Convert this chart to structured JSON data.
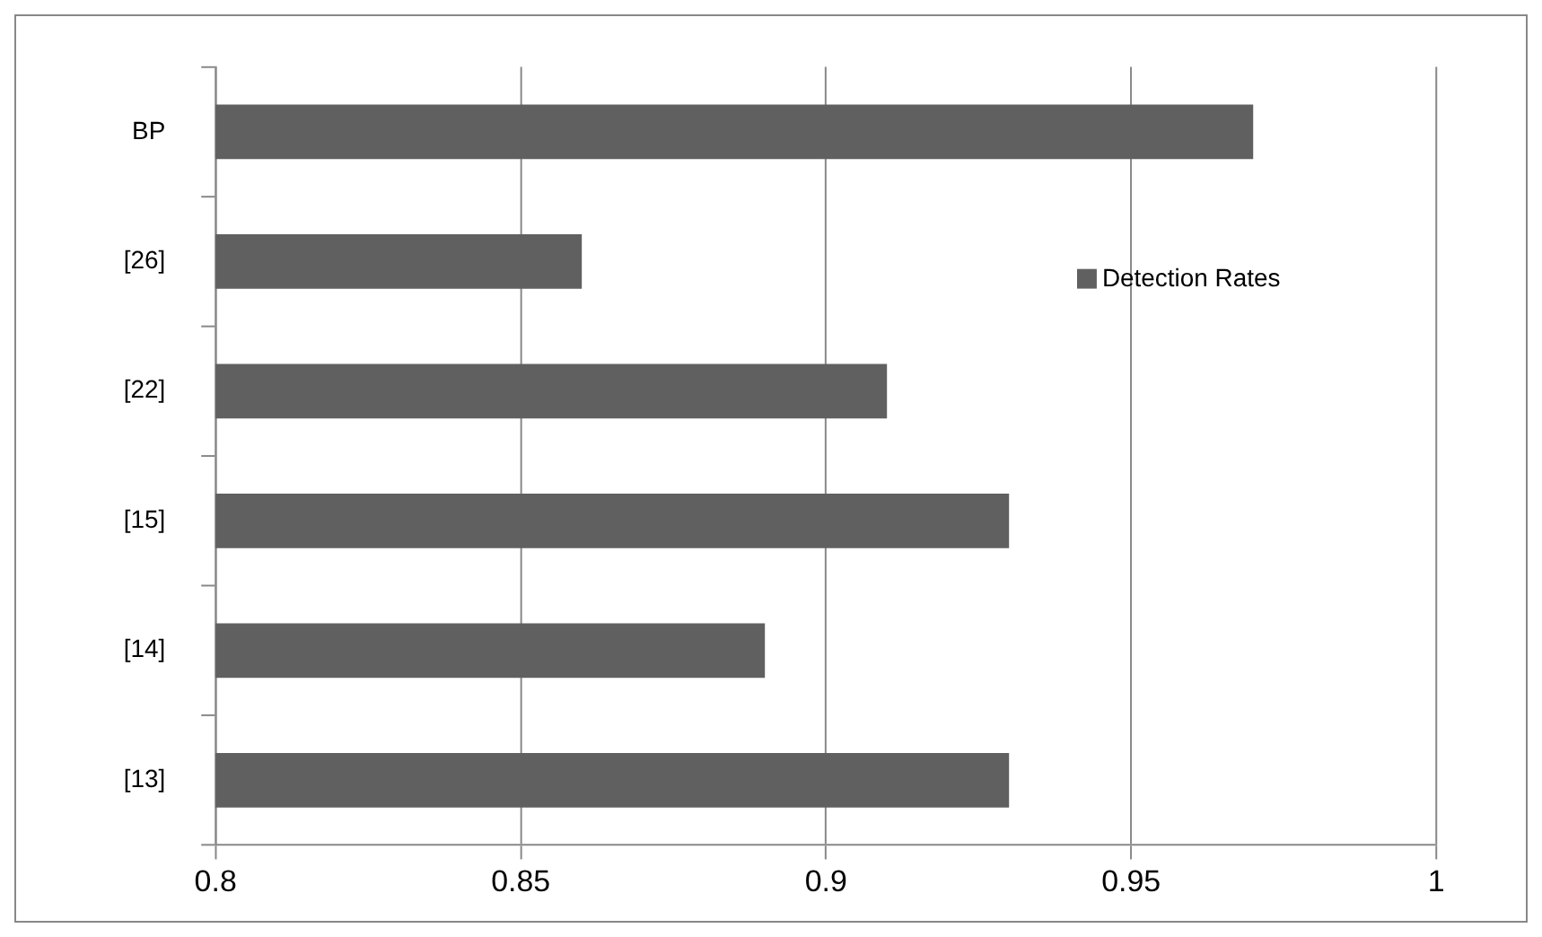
{
  "chart_data": {
    "type": "bar",
    "orientation": "horizontal",
    "categories": [
      "BP",
      "[26]",
      "[22]",
      "[15]",
      "[14]",
      "[13]"
    ],
    "series": [
      {
        "name": "Detection Rates",
        "color": "#606060",
        "values": [
          0.97,
          0.86,
          0.91,
          0.93,
          0.89,
          0.93
        ]
      }
    ],
    "xlim": [
      0.8,
      1
    ],
    "xticks": [
      0.8,
      0.85,
      0.9,
      0.95,
      1
    ],
    "grid": "x",
    "legend": "top right"
  }
}
